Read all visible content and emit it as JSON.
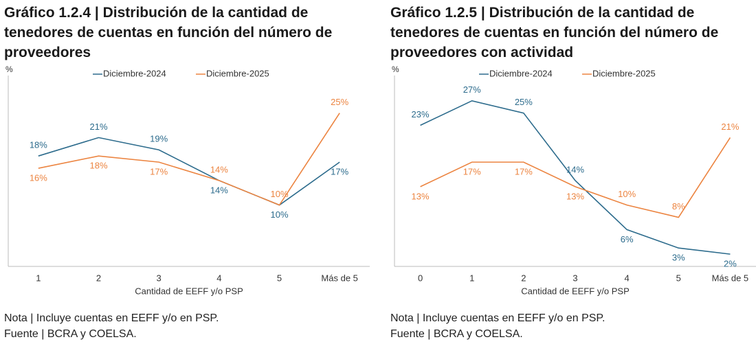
{
  "chart_data": [
    {
      "type": "line",
      "title": "Gráfico 1.2.4 | Distribución de la cantidad de tenedores de cuentas en función del número de proveedores",
      "y_label": "%",
      "x_label": "Cantidad de EEFF y/o PSP",
      "categories": [
        "1",
        "2",
        "3",
        "4",
        "5",
        "Más de 5"
      ],
      "ylim": [
        0,
        30
      ],
      "series": [
        {
          "name": "Diciembre-2024",
          "color": "#2c6b8c",
          "values": [
            18,
            21,
            19,
            14,
            10,
            17
          ],
          "value_labels": [
            "18%",
            "21%",
            "19%",
            "14%",
            "10%",
            "17%"
          ]
        },
        {
          "name": "Diciembre-2025",
          "color": "#ec8440",
          "values": [
            16,
            18,
            17,
            14,
            10,
            25
          ],
          "value_labels": [
            "16%",
            "18%",
            "17%",
            "14%",
            "10%",
            "25%"
          ]
        }
      ],
      "note": "Nota | Incluye cuentas en EEFF y/o en PSP.",
      "source": "Fuente | BCRA y COELSA."
    },
    {
      "type": "line",
      "title": "Gráfico 1.2.5 | Distribución de la cantidad de tenedores de cuentas en función del número de proveedores con actividad",
      "y_label": "%",
      "x_label": "Cantidad de EEFF y/o PSP",
      "categories": [
        "0",
        "1",
        "2",
        "3",
        "4",
        "5",
        "Más de 5"
      ],
      "ylim": [
        0,
        30
      ],
      "series": [
        {
          "name": "Diciembre-2024",
          "color": "#2c6b8c",
          "values": [
            23,
            27,
            25,
            14,
            6,
            3,
            2
          ],
          "value_labels": [
            "23%",
            "27%",
            "25%",
            "14%",
            "6%",
            "3%",
            "2%"
          ]
        },
        {
          "name": "Diciembre-2025",
          "color": "#ec8440",
          "values": [
            13,
            17,
            17,
            13,
            10,
            8,
            21
          ],
          "value_labels": [
            "13%",
            "17%",
            "17%",
            "13%",
            "10%",
            "8%",
            "21%"
          ]
        }
      ],
      "note": "Nota | Incluye cuentas en EEFF y/o en PSP.",
      "source": "Fuente | BCRA y COELSA."
    }
  ]
}
